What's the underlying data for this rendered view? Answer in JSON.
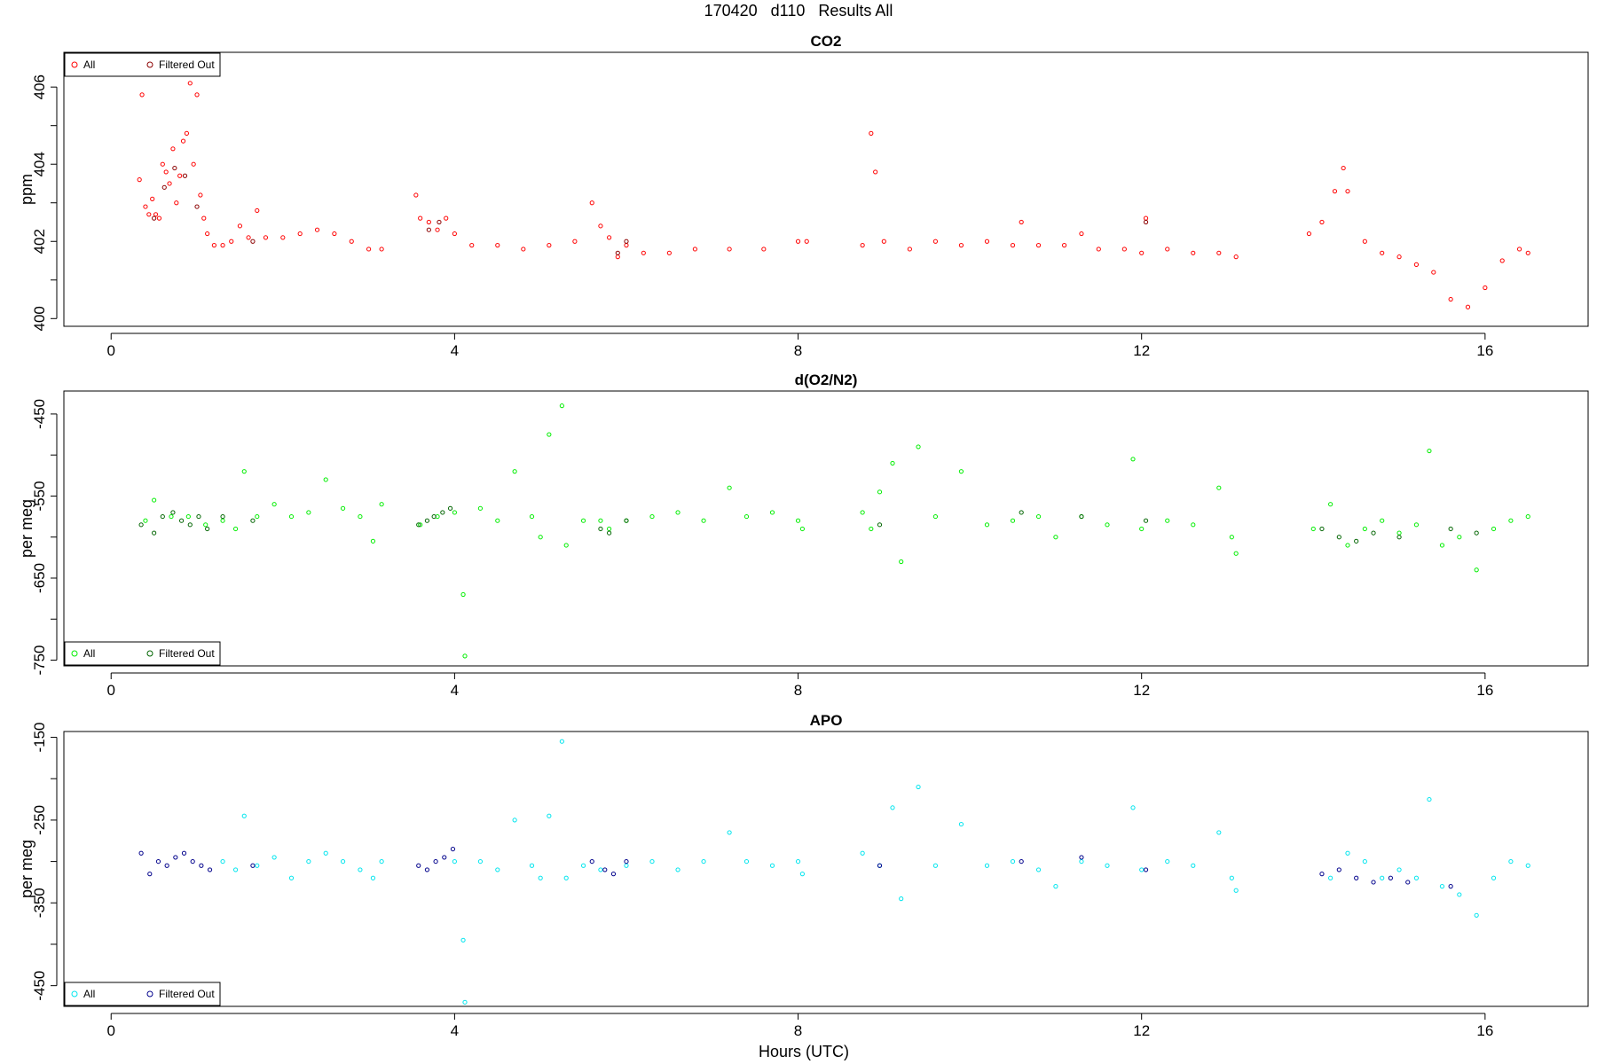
{
  "figure": {
    "super_title": "170420   d110   Results All",
    "xlabel": "Hours (UTC)"
  },
  "chart_data": [
    {
      "type": "scatter",
      "title": "CO2",
      "ylabel": "ppm",
      "xlim": [
        -0.55,
        17.2
      ],
      "ylim": [
        399.8,
        406.9
      ],
      "xticks": [
        0,
        4,
        8,
        12,
        16
      ],
      "yticks": [
        400,
        401,
        402,
        403,
        404,
        405,
        406
      ],
      "ytick_labels": [
        "400",
        "",
        "402",
        "",
        "404",
        "",
        "406"
      ],
      "legend": {
        "position": "top-left",
        "entries": [
          "All",
          "Filtered Out"
        ]
      },
      "series": [
        {
          "name": "All",
          "color": "#ff0000",
          "x": [
            0.33,
            0.36,
            0.4,
            0.44,
            0.48,
            0.52,
            0.56,
            0.6,
            0.64,
            0.68,
            0.72,
            0.76,
            0.8,
            0.84,
            0.88,
            0.92,
            0.96,
            1.0,
            1.04,
            1.08,
            1.12,
            1.2,
            1.3,
            1.4,
            1.5,
            1.6,
            1.7,
            1.8,
            2.0,
            2.2,
            2.4,
            2.6,
            2.8,
            3.0,
            3.15,
            3.55,
            3.6,
            3.7,
            3.8,
            3.9,
            4.0,
            4.2,
            4.5,
            4.8,
            5.1,
            5.4,
            5.6,
            5.7,
            5.8,
            5.9,
            6.0,
            6.2,
            6.5,
            6.8,
            7.2,
            7.6,
            8.0,
            8.1,
            8.75,
            8.85,
            8.9,
            9.0,
            9.3,
            9.6,
            9.9,
            10.2,
            10.5,
            10.6,
            10.8,
            11.1,
            11.3,
            11.5,
            11.8,
            12.0,
            12.05,
            12.3,
            12.6,
            12.9,
            13.1,
            13.95,
            14.1,
            14.25,
            14.35,
            14.4,
            14.6,
            14.8,
            15.0,
            15.2,
            15.4,
            15.6,
            15.8,
            16.0,
            16.2,
            16.4,
            16.5
          ],
          "y": [
            403.6,
            405.8,
            402.9,
            402.7,
            403.1,
            402.7,
            402.6,
            404.0,
            403.8,
            403.5,
            404.4,
            403.0,
            403.7,
            404.6,
            404.8,
            406.1,
            404.0,
            405.8,
            403.2,
            402.6,
            402.2,
            401.9,
            401.9,
            402.0,
            402.4,
            402.1,
            402.8,
            402.1,
            402.1,
            402.2,
            402.3,
            402.2,
            402.0,
            401.8,
            401.8,
            403.2,
            402.6,
            402.5,
            402.3,
            402.6,
            402.2,
            401.9,
            401.9,
            401.8,
            401.9,
            402.0,
            403.0,
            402.4,
            402.1,
            401.6,
            401.9,
            401.7,
            401.7,
            401.8,
            401.8,
            401.8,
            402.0,
            402.0,
            401.9,
            404.8,
            403.8,
            402.0,
            401.8,
            402.0,
            401.9,
            402.0,
            401.9,
            402.5,
            401.9,
            401.9,
            402.2,
            401.8,
            401.8,
            401.7,
            402.6,
            401.8,
            401.7,
            401.7,
            401.6,
            402.2,
            402.5,
            403.3,
            403.9,
            403.3,
            402.0,
            401.7,
            401.6,
            401.4,
            401.2,
            400.5,
            400.3,
            400.8,
            401.5,
            401.8,
            401.7
          ]
        },
        {
          "name": "Filtered Out",
          "color": "#8b0000",
          "x": [
            0.5,
            0.62,
            0.74,
            0.86,
            1.0,
            1.65,
            3.7,
            3.82,
            5.9,
            6.0,
            12.05
          ],
          "y": [
            402.6,
            403.4,
            403.9,
            403.7,
            402.9,
            402.0,
            402.3,
            402.5,
            401.7,
            402.0,
            402.5
          ]
        }
      ]
    },
    {
      "type": "scatter",
      "title": "d(O2/N2)",
      "ylabel": "per meg",
      "xlim": [
        -0.55,
        17.2
      ],
      "ylim": [
        -757,
        -422
      ],
      "xticks": [
        0,
        4,
        8,
        12,
        16
      ],
      "yticks": [
        -750,
        -700,
        -650,
        -600,
        -550,
        -500,
        -450
      ],
      "ytick_labels": [
        "-750",
        "",
        "-650",
        "",
        "-550",
        "",
        "-450"
      ],
      "legend": {
        "position": "bottom-left",
        "entries": [
          "All",
          "Filtered Out"
        ]
      },
      "series": [
        {
          "name": "All",
          "color": "#00ee00",
          "x": [
            0.4,
            0.5,
            0.7,
            0.9,
            1.1,
            1.3,
            1.45,
            1.55,
            1.7,
            1.9,
            2.1,
            2.3,
            2.5,
            2.7,
            2.9,
            3.05,
            3.15,
            3.6,
            3.8,
            4.0,
            4.1,
            4.12,
            4.3,
            4.5,
            4.7,
            4.9,
            5.0,
            5.1,
            5.25,
            5.3,
            5.5,
            5.7,
            5.8,
            6.0,
            6.3,
            6.6,
            6.9,
            7.2,
            7.4,
            7.7,
            8.0,
            8.05,
            8.75,
            8.85,
            8.95,
            9.1,
            9.2,
            9.4,
            9.6,
            9.9,
            10.2,
            10.5,
            10.8,
            11.0,
            11.3,
            11.6,
            11.9,
            12.0,
            12.3,
            12.6,
            12.9,
            13.05,
            13.1,
            14.0,
            14.2,
            14.4,
            14.6,
            14.8,
            15.0,
            15.2,
            15.35,
            15.5,
            15.7,
            15.9,
            16.1,
            16.3,
            16.5
          ],
          "y": [
            -580,
            -555,
            -575,
            -575,
            -585,
            -580,
            -590,
            -520,
            -575,
            -560,
            -575,
            -570,
            -530,
            -565,
            -575,
            -605,
            -560,
            -585,
            -575,
            -570,
            -670,
            -745,
            -565,
            -580,
            -520,
            -575,
            -600,
            -475,
            -440,
            -610,
            -580,
            -580,
            -590,
            -580,
            -575,
            -570,
            -580,
            -540,
            -575,
            -570,
            -580,
            -590,
            -570,
            -590,
            -545,
            -510,
            -630,
            -490,
            -575,
            -520,
            -585,
            -580,
            -575,
            -600,
            -575,
            -585,
            -505,
            -590,
            -580,
            -585,
            -540,
            -600,
            -620,
            -590,
            -560,
            -610,
            -590,
            -580,
            -595,
            -585,
            -495,
            -610,
            -600,
            -640,
            -590,
            -580,
            -575
          ]
        },
        {
          "name": "Filtered Out",
          "color": "#006400",
          "x": [
            0.35,
            0.5,
            0.6,
            0.72,
            0.82,
            0.92,
            1.02,
            1.12,
            1.3,
            1.65,
            3.58,
            3.68,
            3.76,
            3.86,
            3.95,
            5.7,
            5.8,
            6.0,
            8.95,
            10.6,
            11.3,
            12.05,
            14.1,
            14.3,
            14.5,
            14.7,
            15.0,
            15.6,
            15.9
          ],
          "y": [
            -585,
            -595,
            -575,
            -570,
            -580,
            -585,
            -575,
            -590,
            -575,
            -580,
            -585,
            -580,
            -575,
            -570,
            -565,
            -590,
            -595,
            -580,
            -585,
            -570,
            -575,
            -580,
            -590,
            -600,
            -605,
            -595,
            -600,
            -590,
            -595
          ]
        }
      ]
    },
    {
      "type": "scatter",
      "title": "APO",
      "ylabel": "per meg",
      "xlim": [
        -0.55,
        17.2
      ],
      "ylim": [
        -475,
        -143
      ],
      "xticks": [
        0,
        4,
        8,
        12,
        16
      ],
      "yticks": [
        -450,
        -400,
        -350,
        -300,
        -250,
        -200,
        -150
      ],
      "ytick_labels": [
        "-450",
        "",
        "-350",
        "",
        "-250",
        "",
        "-150"
      ],
      "legend": {
        "position": "bottom-left",
        "entries": [
          "All",
          "Filtered Out"
        ]
      },
      "series": [
        {
          "name": "All",
          "color": "#00e5ee",
          "x": [
            1.3,
            1.45,
            1.55,
            1.7,
            1.9,
            2.1,
            2.3,
            2.5,
            2.7,
            2.9,
            3.05,
            3.15,
            4.0,
            4.1,
            4.12,
            4.3,
            4.5,
            4.7,
            4.9,
            5.0,
            5.1,
            5.25,
            5.3,
            5.5,
            5.7,
            6.0,
            6.3,
            6.6,
            6.9,
            7.2,
            7.4,
            7.7,
            8.0,
            8.05,
            8.75,
            8.95,
            9.1,
            9.2,
            9.4,
            9.6,
            9.9,
            10.2,
            10.5,
            10.8,
            11.0,
            11.3,
            11.6,
            11.9,
            12.0,
            12.3,
            12.6,
            12.9,
            13.05,
            13.1,
            14.2,
            14.4,
            14.6,
            14.8,
            15.0,
            15.2,
            15.35,
            15.5,
            15.7,
            15.9,
            16.1,
            16.3,
            16.5
          ],
          "y": [
            -300,
            -310,
            -245,
            -305,
            -295,
            -320,
            -300,
            -290,
            -300,
            -310,
            -320,
            -300,
            -300,
            -395,
            -470,
            -300,
            -310,
            -250,
            -305,
            -320,
            -245,
            -155,
            -320,
            -305,
            -310,
            -305,
            -300,
            -310,
            -300,
            -265,
            -300,
            -305,
            -300,
            -315,
            -290,
            -305,
            -235,
            -345,
            -210,
            -305,
            -255,
            -305,
            -300,
            -310,
            -330,
            -300,
            -305,
            -235,
            -310,
            -300,
            -305,
            -265,
            -320,
            -335,
            -320,
            -290,
            -300,
            -320,
            -310,
            -320,
            -225,
            -330,
            -340,
            -365,
            -320,
            -300,
            -305
          ]
        },
        {
          "name": "Filtered Out",
          "color": "#00008b",
          "x": [
            0.35,
            0.45,
            0.55,
            0.65,
            0.75,
            0.85,
            0.95,
            1.05,
            1.15,
            1.65,
            3.58,
            3.68,
            3.78,
            3.88,
            3.98,
            5.6,
            5.75,
            5.85,
            6.0,
            8.95,
            10.6,
            11.3,
            12.05,
            14.1,
            14.3,
            14.5,
            14.7,
            14.9,
            15.1,
            15.6
          ],
          "y": [
            -290,
            -315,
            -300,
            -305,
            -295,
            -290,
            -300,
            -305,
            -310,
            -305,
            -305,
            -310,
            -300,
            -295,
            -285,
            -300,
            -310,
            -315,
            -300,
            -305,
            -300,
            -295,
            -310,
            -315,
            -310,
            -320,
            -325,
            -320,
            -325,
            -330
          ]
        }
      ]
    }
  ]
}
